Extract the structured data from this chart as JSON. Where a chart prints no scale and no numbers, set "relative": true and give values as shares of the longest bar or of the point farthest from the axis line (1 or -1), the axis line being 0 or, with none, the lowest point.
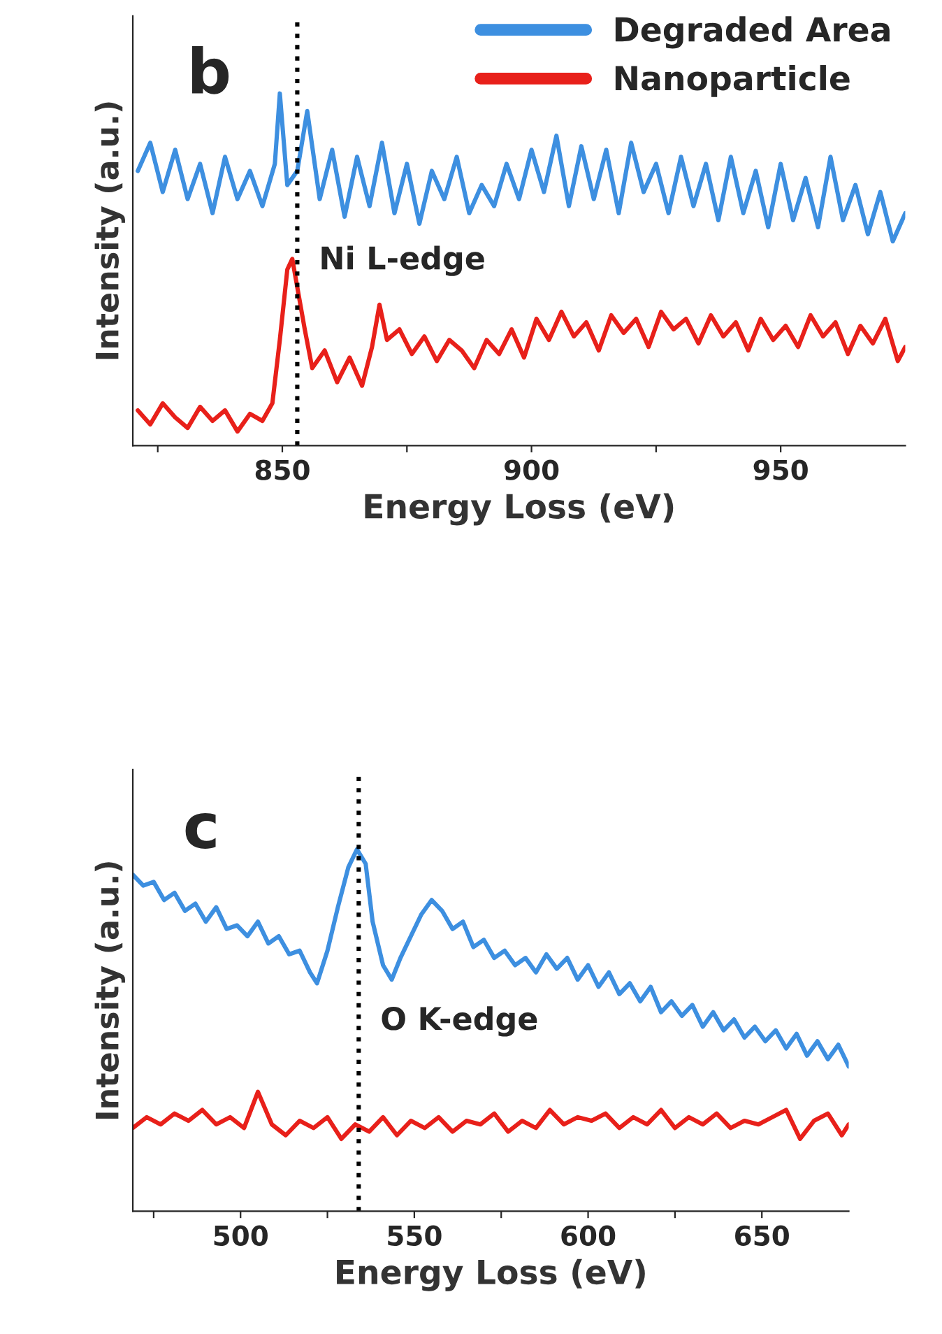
{
  "chart_data": [
    {
      "type": "line",
      "title": "b",
      "xlabel": "Energy Loss (eV)",
      "ylabel": "Intensity (a.u.)",
      "relative": true,
      "legend": "top right",
      "grid": false,
      "xlim": [
        820,
        975
      ],
      "xticks": [
        {
          "value": 825,
          "label": null
        },
        850,
        {
          "value": 875,
          "label": null
        },
        900,
        {
          "value": 925,
          "label": null
        },
        950
      ],
      "ref_lines": [
        {
          "axis": "x",
          "value": 853,
          "label": "Ni L-edge",
          "color": "#000000",
          "line_style": "dotted"
        }
      ],
      "series": [
        {
          "name": "Degraded Area",
          "color": "#3d8fe0",
          "x": [
            821,
            823.5,
            826,
            828.5,
            831,
            833.5,
            836,
            838.5,
            841,
            843.5,
            846,
            848.5,
            849.5,
            851,
            853,
            855,
            857.5,
            860,
            862.5,
            865,
            867.5,
            870,
            872.5,
            875,
            877.5,
            880,
            882.5,
            885,
            887.5,
            890,
            892.5,
            895,
            897.5,
            900,
            902.5,
            905,
            907.5,
            910,
            912.5,
            915,
            917.5,
            920,
            922.5,
            925,
            927.5,
            930,
            932.5,
            935,
            937.5,
            940,
            942.5,
            945,
            947.5,
            950,
            952.5,
            955,
            957.5,
            960,
            962.5,
            965,
            967.5,
            970,
            972.5,
            975
          ],
          "values": [
            0.78,
            0.86,
            0.72,
            0.84,
            0.7,
            0.8,
            0.66,
            0.82,
            0.7,
            0.78,
            0.68,
            0.8,
            1.0,
            0.74,
            0.78,
            0.95,
            0.7,
            0.84,
            0.65,
            0.82,
            0.68,
            0.86,
            0.66,
            0.8,
            0.63,
            0.78,
            0.7,
            0.82,
            0.66,
            0.74,
            0.68,
            0.8,
            0.7,
            0.84,
            0.72,
            0.88,
            0.68,
            0.85,
            0.7,
            0.84,
            0.66,
            0.86,
            0.72,
            0.8,
            0.66,
            0.82,
            0.68,
            0.8,
            0.64,
            0.82,
            0.66,
            0.78,
            0.62,
            0.8,
            0.64,
            0.76,
            0.62,
            0.82,
            0.64,
            0.74,
            0.6,
            0.72,
            0.58,
            0.66
          ]
        },
        {
          "name": "Nanoparticle",
          "color": "#e8201a",
          "x": [
            821,
            823.5,
            826,
            828.5,
            831,
            833.5,
            836,
            838.5,
            841,
            843.5,
            846,
            848,
            849.5,
            851,
            852,
            853,
            854.5,
            856,
            858.5,
            861,
            863.5,
            866,
            868,
            869.5,
            871,
            873.5,
            876,
            878.5,
            881,
            883.5,
            886,
            888.5,
            891,
            893.5,
            896,
            898.5,
            901,
            903.5,
            906,
            908.5,
            911,
            913.5,
            916,
            918.5,
            921,
            923.5,
            926,
            928.5,
            931,
            933.5,
            936,
            938.5,
            941,
            943.5,
            946,
            948.5,
            951,
            953.5,
            956,
            958.5,
            961,
            963.5,
            966,
            968.5,
            971,
            973.5,
            975
          ],
          "values": [
            0.1,
            0.06,
            0.12,
            0.08,
            0.05,
            0.11,
            0.07,
            0.1,
            0.04,
            0.09,
            0.07,
            0.12,
            0.3,
            0.5,
            0.53,
            0.45,
            0.33,
            0.22,
            0.27,
            0.18,
            0.25,
            0.17,
            0.28,
            0.4,
            0.3,
            0.33,
            0.26,
            0.31,
            0.24,
            0.3,
            0.27,
            0.22,
            0.3,
            0.26,
            0.33,
            0.25,
            0.36,
            0.3,
            0.38,
            0.31,
            0.35,
            0.27,
            0.37,
            0.32,
            0.36,
            0.28,
            0.38,
            0.33,
            0.36,
            0.29,
            0.37,
            0.31,
            0.35,
            0.27,
            0.36,
            0.3,
            0.34,
            0.28,
            0.37,
            0.31,
            0.35,
            0.26,
            0.34,
            0.29,
            0.36,
            0.24,
            0.28
          ]
        }
      ]
    },
    {
      "type": "line",
      "title": "c",
      "xlabel": "Energy Loss (eV)",
      "ylabel": "Intensity (a.u.)",
      "relative": true,
      "grid": false,
      "xlim": [
        469,
        675
      ],
      "xticks": [
        {
          "value": 475,
          "label": null
        },
        500,
        {
          "value": 525,
          "label": null
        },
        550,
        {
          "value": 575,
          "label": null
        },
        600,
        {
          "value": 625,
          "label": null
        },
        650
      ],
      "ref_lines": [
        {
          "axis": "x",
          "value": 534,
          "label": "O K-edge",
          "color": "#000000",
          "line_style": "dotted"
        }
      ],
      "series": [
        {
          "color": "#3d8fe0",
          "x": [
            469,
            472,
            475,
            478,
            481,
            484,
            487,
            490,
            493,
            496,
            499,
            502,
            505,
            508,
            511,
            514,
            517,
            520,
            522,
            525,
            528,
            531,
            533.5,
            536,
            538,
            541,
            543.5,
            546,
            549,
            552,
            555,
            558,
            561,
            564,
            567,
            570,
            573,
            576,
            579,
            582,
            585,
            588,
            591,
            594,
            597,
            600,
            603,
            606,
            609,
            612,
            615,
            618,
            621,
            624,
            627,
            630,
            633,
            636,
            639,
            642,
            645,
            648,
            651,
            654,
            657,
            660,
            663,
            666,
            669,
            672,
            675
          ],
          "values": [
            0.93,
            0.9,
            0.91,
            0.86,
            0.88,
            0.83,
            0.85,
            0.8,
            0.84,
            0.78,
            0.79,
            0.76,
            0.8,
            0.74,
            0.76,
            0.71,
            0.72,
            0.66,
            0.63,
            0.72,
            0.84,
            0.95,
            1.0,
            0.96,
            0.8,
            0.68,
            0.64,
            0.7,
            0.76,
            0.82,
            0.86,
            0.83,
            0.78,
            0.8,
            0.73,
            0.75,
            0.7,
            0.72,
            0.68,
            0.7,
            0.66,
            0.71,
            0.67,
            0.7,
            0.64,
            0.68,
            0.62,
            0.66,
            0.6,
            0.63,
            0.58,
            0.62,
            0.55,
            0.58,
            0.54,
            0.57,
            0.51,
            0.55,
            0.5,
            0.53,
            0.48,
            0.51,
            0.47,
            0.5,
            0.45,
            0.49,
            0.43,
            0.47,
            0.42,
            0.46,
            0.4
          ]
        },
        {
          "color": "#e8201a",
          "x": [
            469,
            473,
            477,
            481,
            485,
            489,
            493,
            497,
            501,
            505,
            509,
            513,
            517,
            521,
            525,
            529,
            533,
            537,
            541,
            545,
            549,
            553,
            557,
            561,
            565,
            569,
            573,
            577,
            581,
            585,
            589,
            593,
            597,
            601,
            605,
            609,
            613,
            617,
            621,
            625,
            629,
            633,
            637,
            641,
            645,
            649,
            653,
            657,
            661,
            665,
            669,
            673,
            675
          ],
          "values": [
            0.23,
            0.26,
            0.24,
            0.27,
            0.25,
            0.28,
            0.24,
            0.26,
            0.23,
            0.33,
            0.24,
            0.21,
            0.25,
            0.23,
            0.26,
            0.2,
            0.24,
            0.22,
            0.26,
            0.21,
            0.25,
            0.23,
            0.26,
            0.22,
            0.25,
            0.24,
            0.27,
            0.22,
            0.25,
            0.23,
            0.28,
            0.24,
            0.26,
            0.25,
            0.27,
            0.23,
            0.26,
            0.24,
            0.28,
            0.23,
            0.26,
            0.24,
            0.27,
            0.23,
            0.25,
            0.24,
            0.26,
            0.28,
            0.2,
            0.25,
            0.27,
            0.21,
            0.24
          ]
        }
      ]
    }
  ]
}
